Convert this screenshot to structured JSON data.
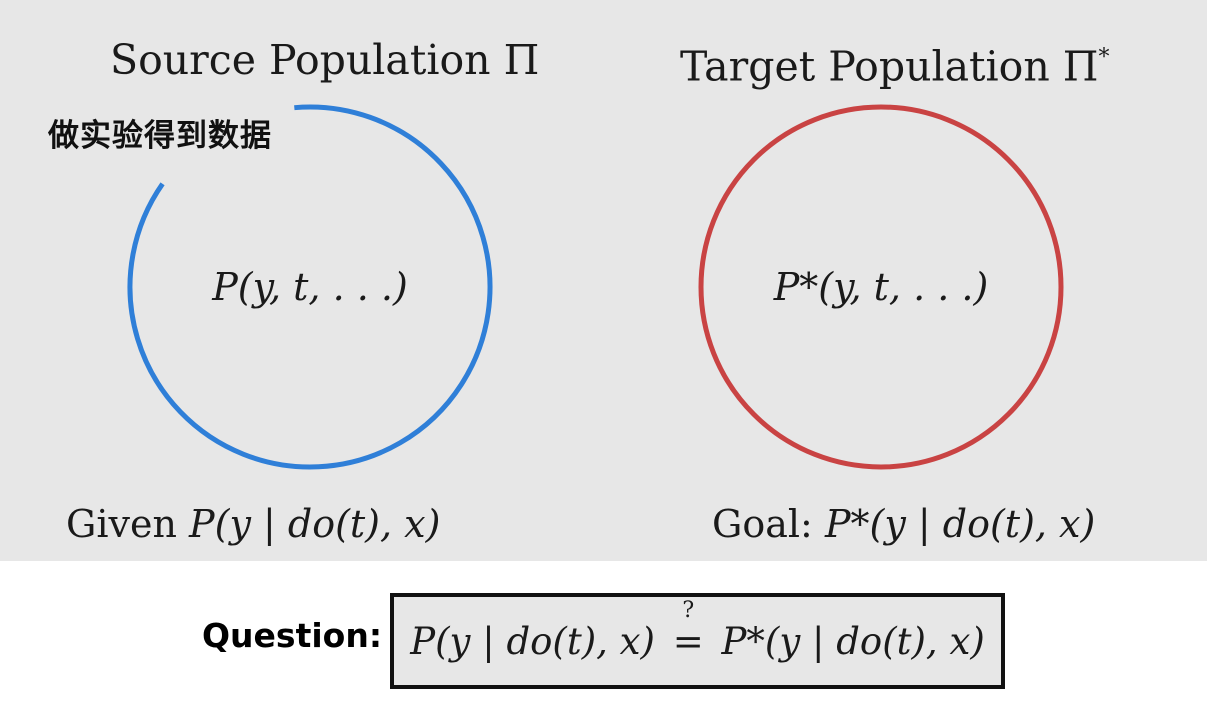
{
  "source": {
    "title": "Source Population Π",
    "distribution": "P(y, t, . . .)",
    "annotation": "做实验得到数据",
    "given_prefix": "Given",
    "given_expr": "P(y | do(t), x)",
    "circle_color": "#2f7fd8"
  },
  "target": {
    "title": "Target Population Π",
    "title_superscript": "*",
    "distribution": "P*(y, t, . . .)",
    "goal_prefix": "Goal:",
    "goal_expr": "P*(y | do(t), x)",
    "circle_color": "#c94343"
  },
  "question": {
    "label": "Question:",
    "lhs": "P(y | do(t), x)",
    "relation": "=",
    "relation_mark": "?",
    "rhs": "P*(y | do(t), x)"
  },
  "colors": {
    "panel_background": "#e7e7e7",
    "page_background": "#ffffff"
  }
}
